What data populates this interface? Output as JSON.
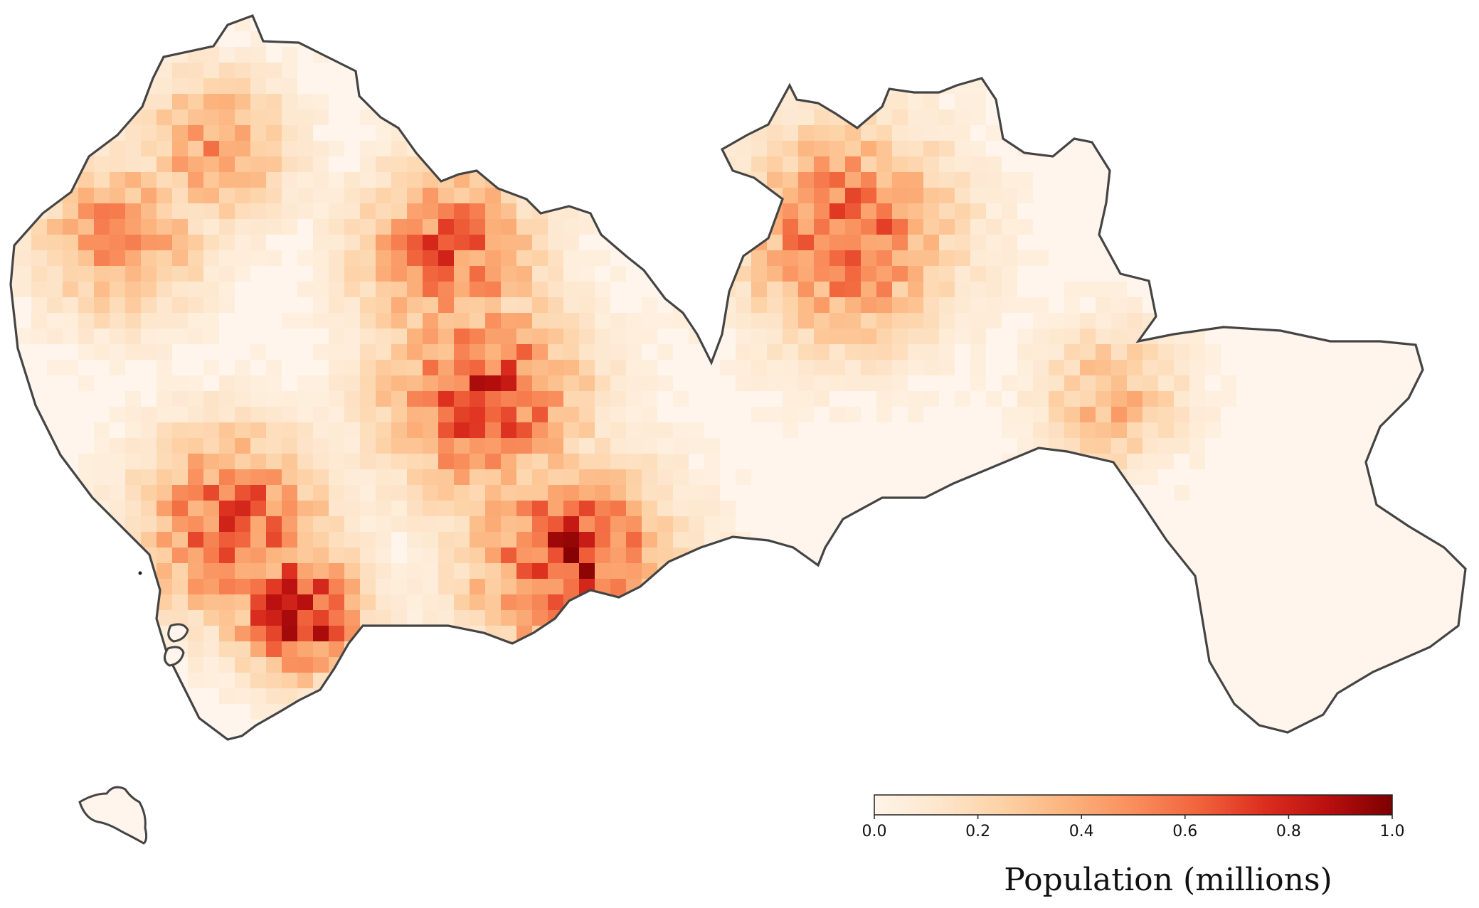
{
  "map": {
    "colorbar": {
      "title": "Population (millions)",
      "min": 0.0,
      "max": 1.0,
      "ticks": [
        "0.0",
        "0.2",
        "0.4",
        "0.6",
        "0.8",
        "1.0"
      ],
      "colormap": "OrRd",
      "colors": [
        "#fff4e8",
        "#fde6cc",
        "#fdd1a5",
        "#fcb27c",
        "#f98e5c",
        "#f1643c",
        "#dd2f1f",
        "#b90f0f",
        "#7d0000"
      ]
    },
    "region": {
      "outline_color": "#444444",
      "fill_color": "#fff5ec"
    },
    "hotspots": [
      {
        "name": "hotspot-west-coast",
        "value": 0.55
      },
      {
        "name": "hotspot-north-west",
        "value": 0.5
      },
      {
        "name": "hotspot-central-north",
        "value": 0.7
      },
      {
        "name": "hotspot-central",
        "value": 0.8
      },
      {
        "name": "hotspot-south-west",
        "value": 0.75
      },
      {
        "name": "hotspot-south-peninsula",
        "value": 1.0
      },
      {
        "name": "hotspot-south-coast",
        "value": 0.85
      },
      {
        "name": "hotspot-east-north",
        "value": 0.7
      },
      {
        "name": "hotspot-east-central",
        "value": 0.4
      }
    ]
  }
}
